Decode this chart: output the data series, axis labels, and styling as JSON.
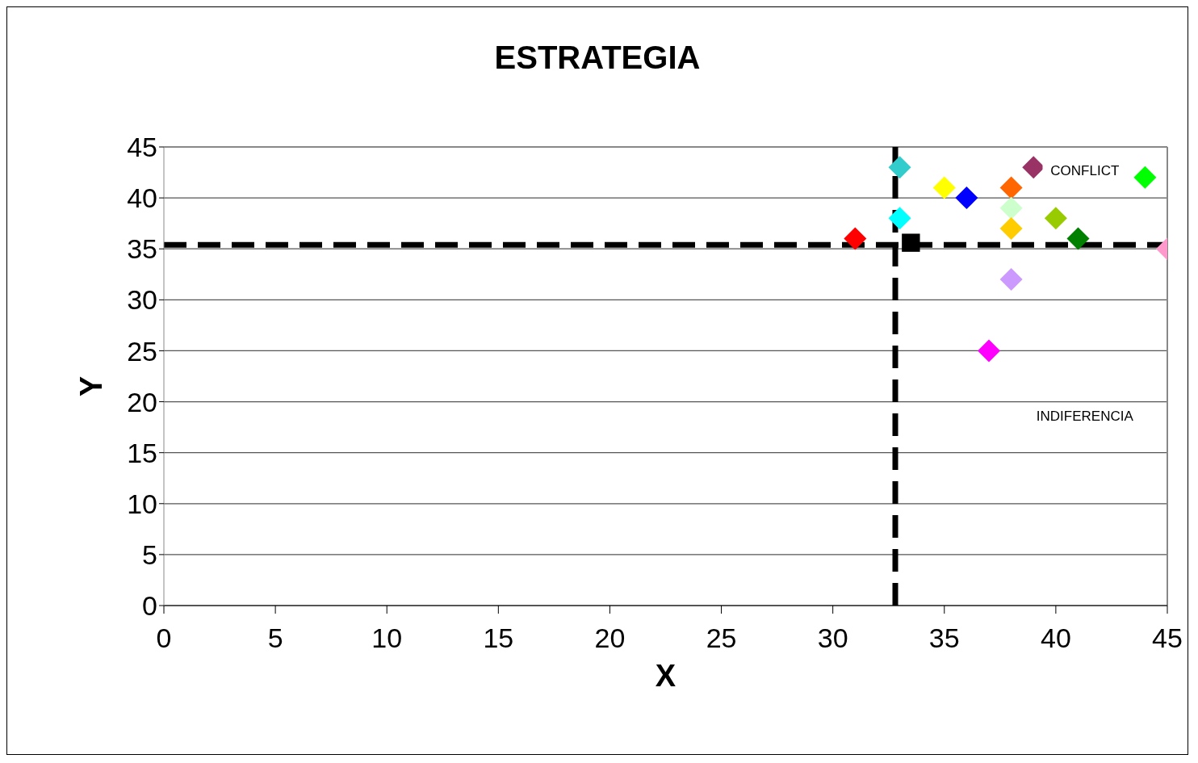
{
  "chart_data": {
    "type": "scatter",
    "title": "ESTRATEGIA",
    "xlabel": "X",
    "ylabel": "Y",
    "annotations": [
      "CONFLICT",
      "INDIFERENCIA"
    ],
    "series": [
      {
        "x": [
          33,
          33,
          31,
          35,
          36,
          38,
          38,
          38,
          39,
          40,
          41,
          44,
          45,
          38,
          37
        ],
        "values": [
          43,
          38,
          36,
          41,
          40,
          41,
          39,
          37,
          43,
          38,
          36,
          42,
          35,
          32,
          25
        ],
        "colors": [
          "#33cccc",
          "#00ffff",
          "#ff0000",
          "#ffff00",
          "#0000ff",
          "#ff6600",
          "#ccffcc",
          "#ffcc00",
          "#993366",
          "#99cc00",
          "#008000",
          "#00ff00",
          "#ff99cc",
          "#cc99ff",
          "#ff00ff"
        ],
        "marker": "diamond"
      },
      {
        "x": [
          33.5
        ],
        "values": [
          35.6
        ],
        "color": "#000000",
        "marker": "square"
      }
    ],
    "ref_lines": [
      {
        "axis": "x",
        "value": 32.8,
        "color": "#000000",
        "line_style": "dashed"
      },
      {
        "axis": "y",
        "value": 35.4,
        "color": "#000000",
        "line_style": "dashed"
      }
    ],
    "xlim": [
      0,
      45
    ],
    "ylim": [
      0,
      45
    ],
    "xticks": [
      0,
      5,
      10,
      15,
      20,
      25,
      30,
      35,
      40,
      45
    ],
    "yticks": [
      0,
      5,
      10,
      15,
      20,
      25,
      30,
      35,
      40,
      45
    ],
    "grid": "y"
  }
}
